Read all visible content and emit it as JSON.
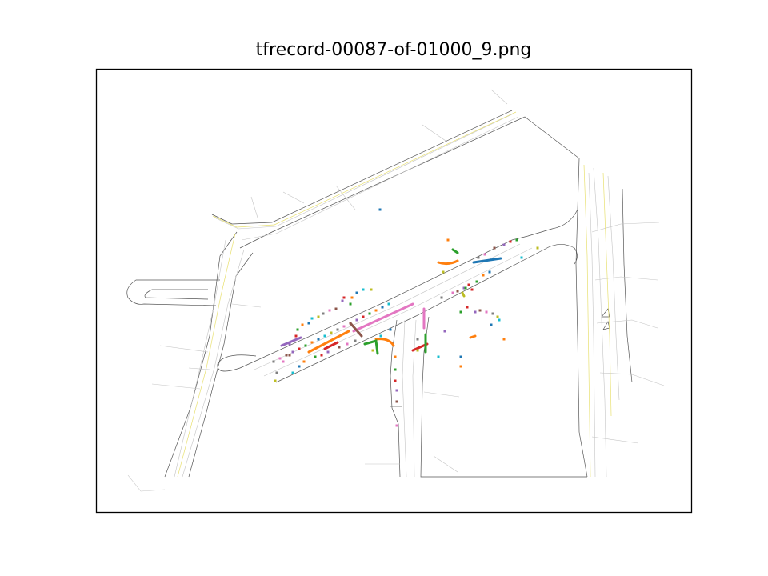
{
  "title": "tfrecord-00087-of-01000_9.png",
  "colors": {
    "road_edge": "#555555",
    "lane_line": "#bbbbbb",
    "center_line": "#e8e070",
    "frame": "#000000",
    "trajectories": [
      "#1f77b4",
      "#ff7f0e",
      "#2ca02c",
      "#d62728",
      "#9467bd",
      "#8c564b",
      "#e377c2",
      "#7f7f7f",
      "#bcbd22",
      "#17becf"
    ]
  }
}
